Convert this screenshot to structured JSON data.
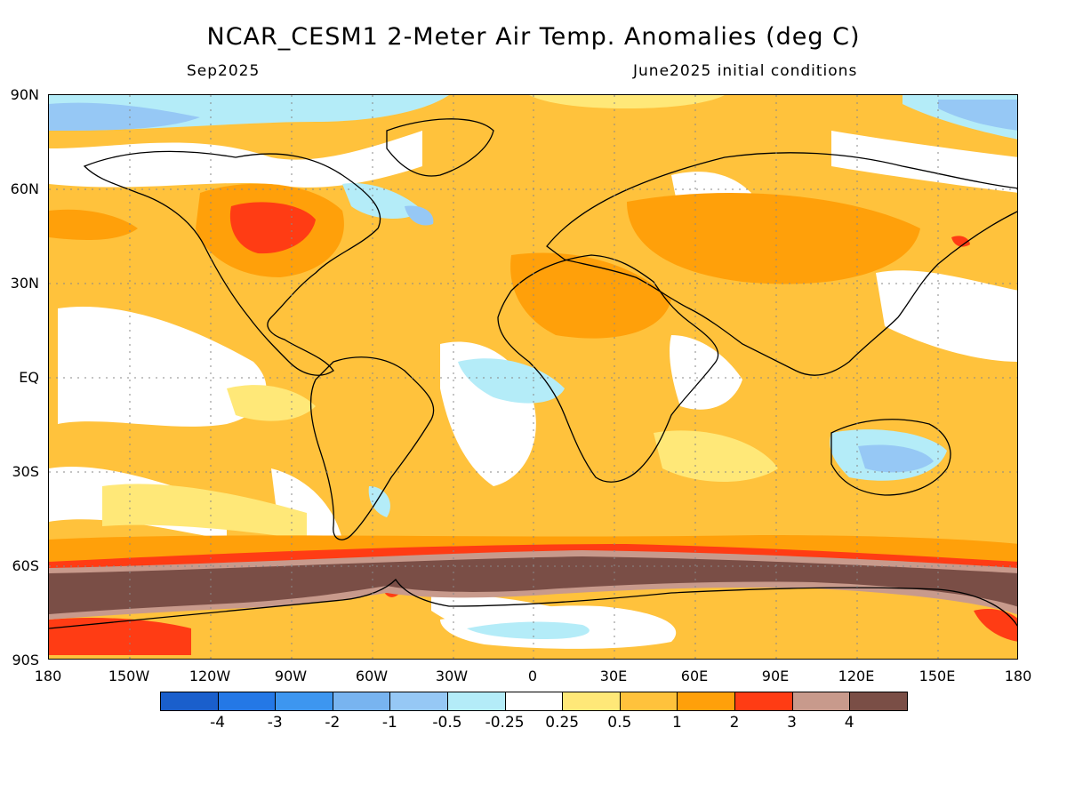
{
  "title": "NCAR_CESM1 2-Meter Air Temp. Anomalies (deg C)",
  "subtitle_left": "Sep2025",
  "subtitle_right": "June2025 initial conditions",
  "lat_labels": [
    "90N",
    "60N",
    "30N",
    "EQ",
    "30S",
    "60S",
    "90S"
  ],
  "lon_labels": [
    "180",
    "150W",
    "120W",
    "90W",
    "60W",
    "30W",
    "0",
    "30E",
    "60E",
    "90E",
    "120E",
    "150E",
    "180"
  ],
  "colorbar": {
    "colors": [
      "#1a5fcc",
      "#2478e6",
      "#3d96f0",
      "#78b4f0",
      "#96c8f5",
      "#b4ecf8",
      "#ffffff",
      "#ffe878",
      "#ffc23c",
      "#ffa00a",
      "#ff3c14",
      "#c89a8c",
      "#7a4e46"
    ],
    "labels": [
      "-4",
      "-3",
      "-2",
      "-1",
      "-0.5",
      "-0.25",
      "0.25",
      "0.5",
      "1",
      "2",
      "3",
      "4"
    ]
  }
}
